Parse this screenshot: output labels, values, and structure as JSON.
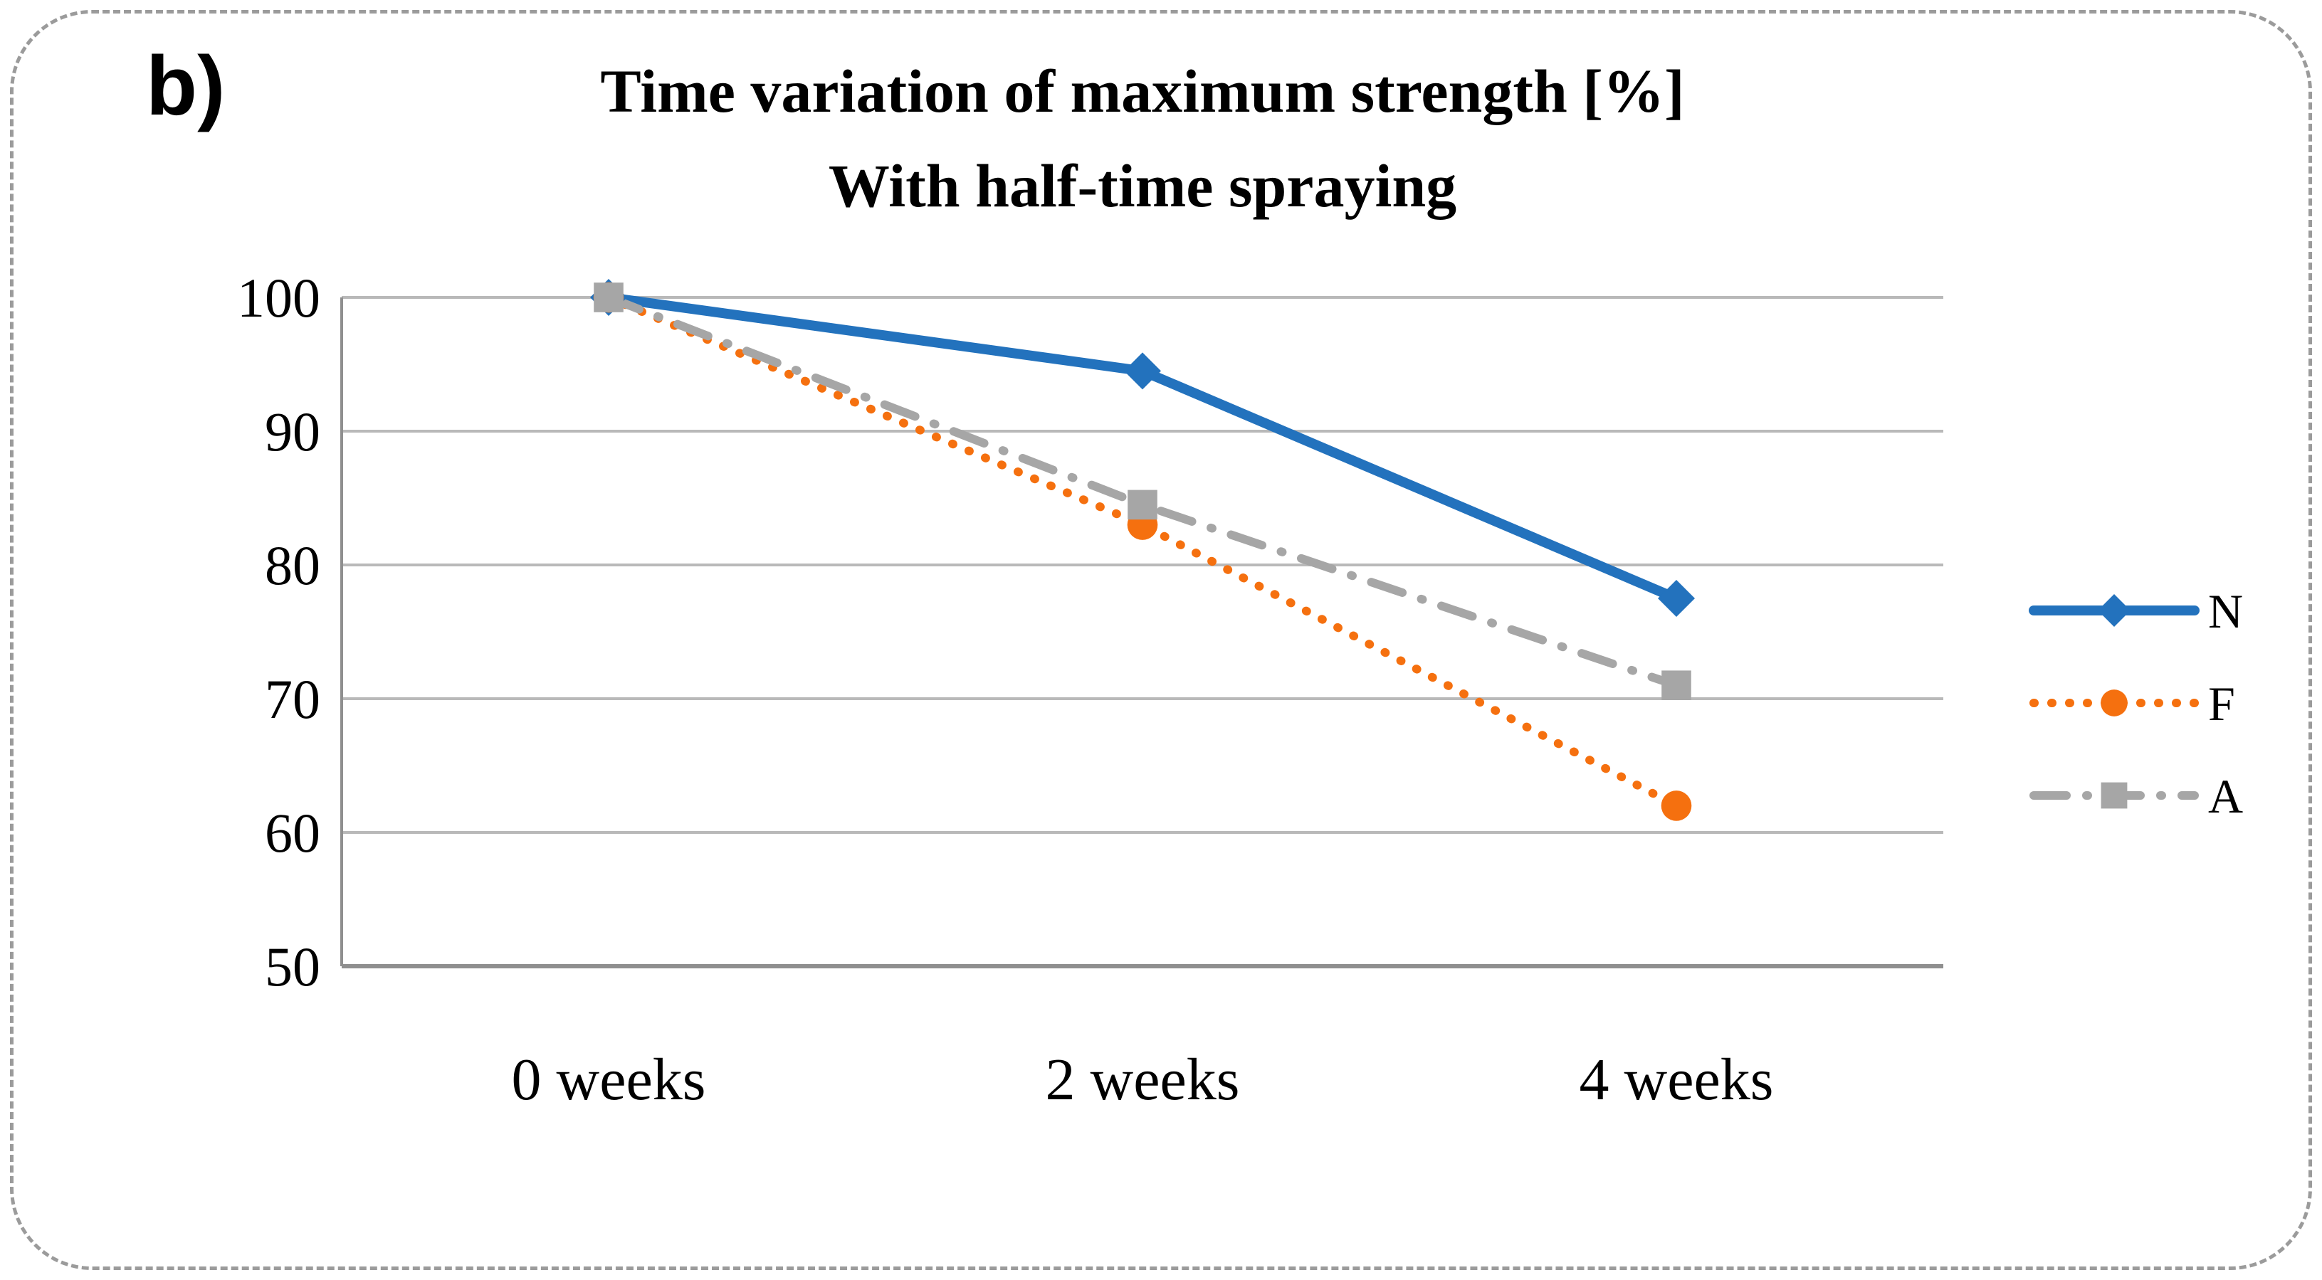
{
  "panel": {
    "label": "b)"
  },
  "chart_data": {
    "type": "line",
    "title": "Time variation of maximum strength [%]",
    "subtitle": "With half-time spraying",
    "categories": [
      "0 weeks",
      "2 weeks",
      "4 weeks"
    ],
    "series": [
      {
        "name": "N",
        "values": [
          100,
          94.5,
          77.5
        ],
        "color": "#2372bd",
        "line_style": "solid",
        "marker": "diamond"
      },
      {
        "name": "F",
        "values": [
          100,
          83,
          62
        ],
        "color": "#f5700f",
        "line_style": "dotted",
        "marker": "circle"
      },
      {
        "name": "A",
        "values": [
          100,
          84.5,
          71
        ],
        "color": "#a6a6a6",
        "line_style": "dash-dot",
        "marker": "square"
      }
    ],
    "yticks": [
      100,
      90,
      80,
      70,
      60,
      50
    ],
    "ylim": [
      50,
      100
    ],
    "xlabel": "",
    "ylabel": "",
    "grid": "horizontal",
    "legend_position": "right",
    "colors": {
      "gridline": "#b9b9b9",
      "axis": "#8f8f8f",
      "text": "#000000"
    }
  }
}
